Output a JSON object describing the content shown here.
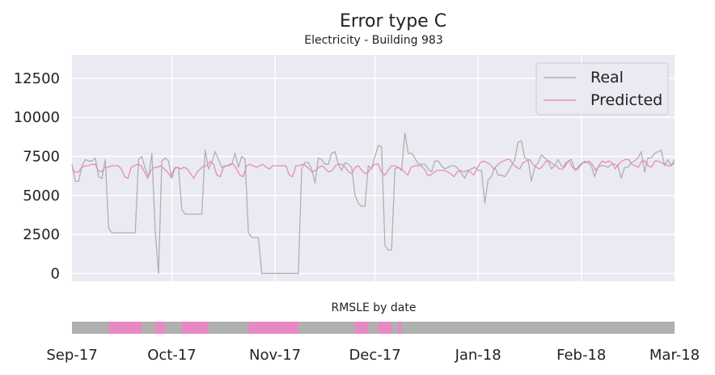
{
  "chart_data": {
    "type": "line",
    "title": "Error type C",
    "subtitle": "Electricity - Building 983",
    "x_start": "2017-09-01",
    "x_end": "2018-03-01",
    "xticks": [
      "Sep-17",
      "Oct-17",
      "Nov-17",
      "Dec-17",
      "Jan-18",
      "Feb-18",
      "Mar-18"
    ],
    "xtick_dates": [
      "2017-09-01",
      "2017-10-01",
      "2017-11-01",
      "2017-12-01",
      "2018-01-01",
      "2018-02-01",
      "2018-03-01"
    ],
    "yticks": [
      0,
      2500,
      5000,
      7500,
      10000,
      12500
    ],
    "ylim": [
      -500,
      14000
    ],
    "grid": true,
    "legend_position": "top-right",
    "series": [
      {
        "name": "Real",
        "color": "#b0b0b0",
        "values": [
          7000,
          5900,
          5900,
          6900,
          7300,
          7200,
          7200,
          7400,
          6200,
          6100,
          7300,
          2900,
          2600,
          2600,
          2600,
          2600,
          2600,
          2600,
          2600,
          2600,
          7300,
          7500,
          6700,
          6200,
          7700,
          2800,
          0,
          7200,
          7400,
          7200,
          6100,
          6800,
          6800,
          4100,
          3800,
          3800,
          3800,
          3800,
          3800,
          3800,
          7900,
          6700,
          7100,
          7800,
          7300,
          6800,
          6900,
          6900,
          7000,
          7700,
          6800,
          7500,
          7300,
          2600,
          2300,
          2300,
          2300,
          0,
          0,
          0,
          0,
          0,
          0,
          0,
          0,
          0,
          0,
          0,
          0,
          6700,
          7100,
          7100,
          6700,
          5800,
          7400,
          7300,
          7000,
          7000,
          7700,
          7800,
          7000,
          6600,
          7100,
          7000,
          6800,
          5000,
          4500,
          4300,
          4300,
          6900,
          6700,
          7500,
          8200,
          8100,
          1800,
          1500,
          1500,
          6700,
          6800,
          6600,
          9000,
          7700,
          7700,
          7400,
          7000,
          7000,
          7000,
          6700,
          6500,
          7200,
          7200,
          6900,
          6700,
          6800,
          6900,
          6900,
          6700,
          6400,
          6100,
          6600,
          6700,
          6800,
          6600,
          6600,
          4500,
          6000,
          6200,
          6800,
          6300,
          6300,
          6200,
          6500,
          6900,
          7300,
          8400,
          8500,
          7400,
          7300,
          5900,
          6800,
          7100,
          7600,
          7400,
          7200,
          6700,
          6900,
          7300,
          6900,
          6800,
          7200,
          7300,
          6700,
          6700,
          7000,
          7200,
          7100,
          6900,
          6200,
          6800,
          6900,
          6900,
          6800,
          7000,
          7000,
          6900,
          6100,
          6800,
          6800,
          7100,
          7200,
          7400,
          7800,
          6500,
          7400,
          7400,
          7700,
          7800,
          7900,
          6900,
          7300,
          6900,
          7300
        ],
        "smooth": true
      },
      {
        "name": "Predicted",
        "color": "#e78ac3",
        "values": [
          6700,
          6500,
          6500,
          6800,
          6900,
          6900,
          7000,
          7000,
          6600,
          6500,
          6800,
          6800,
          6900,
          6900,
          6900,
          6700,
          6200,
          6100,
          6800,
          6900,
          7000,
          6900,
          6500,
          6100,
          6600,
          6800,
          6800,
          6900,
          6700,
          6500,
          6200,
          6700,
          6800,
          6700,
          6800,
          6700,
          6400,
          6100,
          6500,
          6700,
          6900,
          6900,
          7200,
          7000,
          6300,
          6200,
          6800,
          6900,
          7000,
          7000,
          6700,
          6300,
          6200,
          6900,
          7000,
          6900,
          6800,
          6900,
          7000,
          6800,
          6700,
          6900,
          6900,
          6900,
          6900,
          6900,
          6300,
          6200,
          6900,
          6900,
          7000,
          6900,
          6700,
          6500,
          6600,
          6800,
          6900,
          6700,
          6500,
          6600,
          6900,
          7000,
          7000,
          6800,
          6500,
          6400,
          6800,
          6900,
          6600,
          6400,
          6500,
          6800,
          7000,
          7000,
          6500,
          6300,
          6600,
          6900,
          6900,
          6800,
          6700,
          6500,
          6300,
          6800,
          6900,
          6900,
          6900,
          6700,
          6300,
          6300,
          6500,
          6600,
          6600,
          6600,
          6500,
          6400,
          6200,
          6500,
          6600,
          6500,
          6600,
          6500,
          6300,
          6700,
          7100,
          7200,
          7100,
          7000,
          6700,
          6900,
          7100,
          7200,
          7300,
          7300,
          7000,
          6800,
          6700,
          7100,
          7200,
          7300,
          7000,
          6800,
          6700,
          6900,
          7200,
          7200,
          7000,
          6900,
          6700,
          6700,
          7100,
          7200,
          6800,
          6600,
          6900,
          7100,
          7100,
          7200,
          7000,
          6600,
          6900,
          7200,
          7100,
          7200,
          7100,
          6700,
          7000,
          7200,
          7300,
          7300,
          7000,
          6900,
          6800,
          7200,
          7200,
          6900,
          6800,
          7200,
          7200,
          7100,
          7000,
          6900,
          6900,
          7100
        ],
        "smooth": true
      }
    ],
    "rmsle_strip": {
      "title": "RMSLE by date",
      "base_color": "#b0b0b0",
      "highlight_color": "#e78ac3",
      "highlight_ranges": [
        [
          "2017-09-12",
          "2017-09-22"
        ],
        [
          "2017-09-26",
          "2017-09-29"
        ],
        [
          "2017-10-04",
          "2017-10-12"
        ],
        [
          "2017-10-24",
          "2017-11-08"
        ],
        [
          "2017-11-25",
          "2017-11-29"
        ],
        [
          "2017-12-02",
          "2017-12-06"
        ],
        [
          "2017-12-08",
          "2017-12-09"
        ]
      ]
    }
  }
}
